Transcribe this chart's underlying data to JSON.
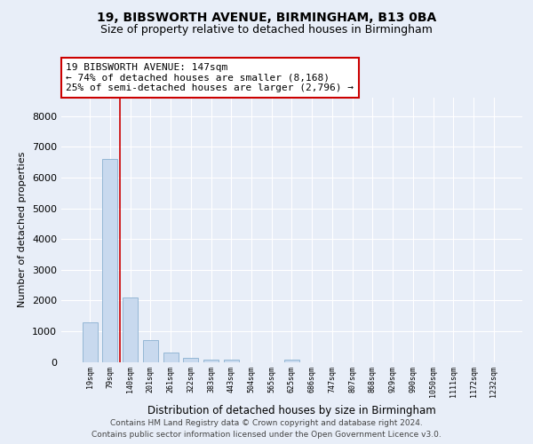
{
  "title1": "19, BIBSWORTH AVENUE, BIRMINGHAM, B13 0BA",
  "title2": "Size of property relative to detached houses in Birmingham",
  "xlabel": "Distribution of detached houses by size in Birmingham",
  "ylabel": "Number of detached properties",
  "categories": [
    "19sqm",
    "79sqm",
    "140sqm",
    "201sqm",
    "261sqm",
    "322sqm",
    "383sqm",
    "443sqm",
    "504sqm",
    "565sqm",
    "625sqm",
    "686sqm",
    "747sqm",
    "807sqm",
    "868sqm",
    "929sqm",
    "990sqm",
    "1050sqm",
    "1111sqm",
    "1172sqm",
    "1232sqm"
  ],
  "values": [
    1300,
    6600,
    2100,
    700,
    290,
    130,
    70,
    60,
    0,
    0,
    60,
    0,
    0,
    0,
    0,
    0,
    0,
    0,
    0,
    0,
    0
  ],
  "bar_color": "#c8d9ee",
  "bar_edge_color": "#8ab0d0",
  "property_line_color": "#cc0000",
  "annotation_text": "19 BIBSWORTH AVENUE: 147sqm\n← 74% of detached houses are smaller (8,168)\n25% of semi-detached houses are larger (2,796) →",
  "annotation_box_color": "#ffffff",
  "annotation_box_edge_color": "#cc0000",
  "ylim": [
    0,
    8600
  ],
  "yticks": [
    0,
    1000,
    2000,
    3000,
    4000,
    5000,
    6000,
    7000,
    8000
  ],
  "bg_color": "#e8eef8",
  "plot_bg_color": "#e8eef8",
  "footer1": "Contains HM Land Registry data © Crown copyright and database right 2024.",
  "footer2": "Contains public sector information licensed under the Open Government Licence v3.0.",
  "grid_color": "#ffffff",
  "title_fontsize": 10,
  "subtitle_fontsize": 9,
  "bar_width": 0.75
}
